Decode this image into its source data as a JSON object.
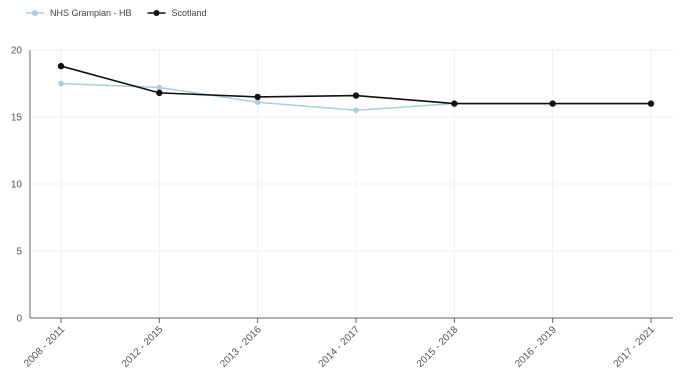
{
  "chart_data": {
    "type": "line",
    "categories": [
      "2008 - 2011",
      "2012 - 2015",
      "2013 - 2016",
      "2014 - 2017",
      "2015 - 2018",
      "2016 - 2019",
      "2017 - 2021"
    ],
    "series": [
      {
        "name": "NHS Grampian - HB",
        "color": "#a8cfe0",
        "values": [
          17.5,
          17.2,
          16.1,
          15.5,
          16.0,
          16.0,
          16.0
        ]
      },
      {
        "name": "Scotland",
        "color": "#111111",
        "values": [
          18.8,
          16.8,
          16.5,
          16.6,
          16.0,
          16.0,
          16.0
        ]
      }
    ],
    "title": "",
    "xlabel": "",
    "ylabel": "",
    "ylim": [
      0,
      20
    ],
    "yticks": [
      0,
      5,
      10,
      15,
      20
    ],
    "grid": true,
    "legend_position": "top-left"
  }
}
